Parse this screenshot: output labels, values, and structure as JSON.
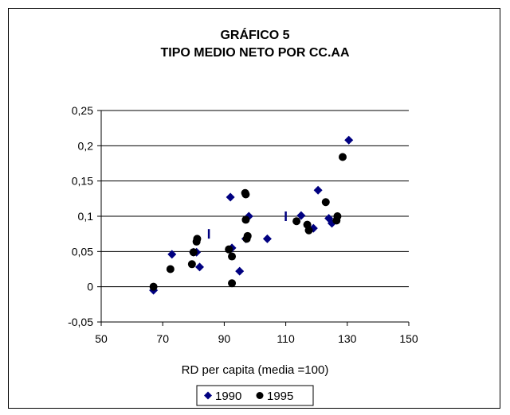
{
  "chart_data": {
    "type": "scatter",
    "title": [
      "GRÁFICO 5",
      "TIPO MEDIO NETO POR CC.AA"
    ],
    "xlabel": "RD per capita (media =100)",
    "ylabel": "",
    "xlim": [
      50,
      150
    ],
    "ylim": [
      -0.05,
      0.25
    ],
    "x_ticks": [
      50,
      70,
      90,
      110,
      130,
      150
    ],
    "x_tick_labels": [
      "50",
      "70",
      "90",
      "110",
      "130",
      "150"
    ],
    "y_ticks": [
      -0.05,
      0,
      0.05,
      0.1,
      0.15,
      0.2,
      0.25
    ],
    "y_tick_labels": [
      "-0,05",
      "0",
      "0,05",
      "0,1",
      "0,15",
      "0,2",
      "0,25"
    ],
    "grid": "horizontal",
    "legend_position": "bottom",
    "series": [
      {
        "name": "1990",
        "marker": "diamond",
        "color": "#000080",
        "points": [
          [
            67,
            -0.005
          ],
          [
            73,
            0.046
          ],
          [
            80,
            0.049
          ],
          [
            81,
            0.049
          ],
          [
            82,
            0.028
          ],
          [
            92,
            0.127
          ],
          [
            92.5,
            0.055
          ],
          [
            95,
            0.022
          ],
          [
            97,
            0.068
          ],
          [
            98,
            0.1
          ],
          [
            104,
            0.068
          ],
          [
            115,
            0.101
          ],
          [
            119,
            0.083
          ],
          [
            120.5,
            0.137
          ],
          [
            124,
            0.097
          ],
          [
            125,
            0.09
          ],
          [
            130.5,
            0.208
          ]
        ]
      },
      {
        "name": "1995",
        "marker": "circle",
        "color": "#000000",
        "points": [
          [
            67,
            0.0
          ],
          [
            72.5,
            0.025
          ],
          [
            79.5,
            0.032
          ],
          [
            80,
            0.049
          ],
          [
            81,
            0.064
          ],
          [
            81.2,
            0.068
          ],
          [
            91.5,
            0.053
          ],
          [
            92.5,
            0.043
          ],
          [
            92.5,
            0.005
          ],
          [
            96.8,
            0.133
          ],
          [
            97,
            0.131
          ],
          [
            97,
            0.095
          ],
          [
            97.3,
            0.068
          ],
          [
            97.6,
            0.072
          ],
          [
            113.5,
            0.093
          ],
          [
            117,
            0.088
          ],
          [
            117.5,
            0.08
          ],
          [
            123,
            0.12
          ],
          [
            126.5,
            0.094
          ],
          [
            126.8,
            0.1
          ],
          [
            128.5,
            0.184
          ]
        ]
      }
    ],
    "annotations": [
      {
        "type": "dash",
        "x": 85,
        "y": 0.075
      },
      {
        "type": "dash",
        "x": 110,
        "y": 0.1
      }
    ]
  }
}
